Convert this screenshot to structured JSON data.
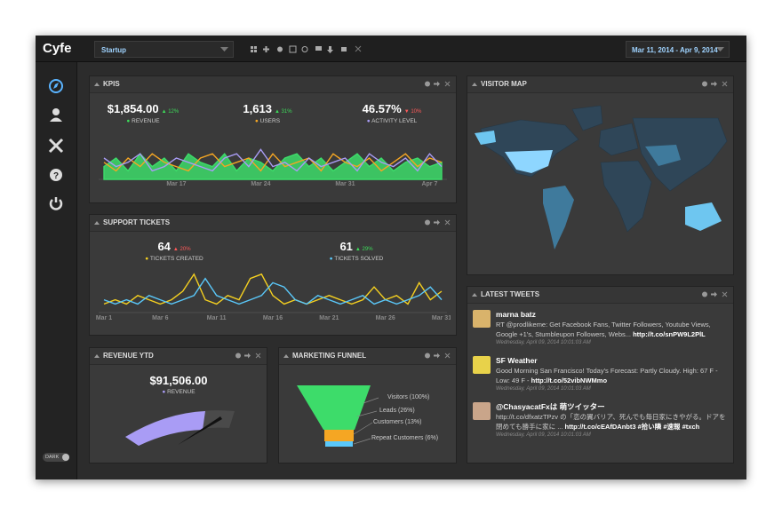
{
  "header": {
    "logo": "Cyfe",
    "dashboard": "Startup",
    "date_range": "Mar 11, 2014 - Apr 9, 2014"
  },
  "sidebar": {
    "toggle": "DARK"
  },
  "kpis": {
    "title": "KPIS",
    "metrics": [
      {
        "value": "$1,854.00",
        "change": "▲ 12%",
        "change_color": "#3ddc5a",
        "label": "REVENUE",
        "color": "#3ddc5a"
      },
      {
        "value": "1,613",
        "change": "▲ 31%",
        "change_color": "#3ddc5a",
        "label": "USERS",
        "color": "#f5a623"
      },
      {
        "value": "46.57%",
        "change": "▼ 10%",
        "change_color": "#ff5a5a",
        "label": "ACTIVITY LEVEL",
        "color": "#a99cf5"
      }
    ],
    "chart": {
      "type": "line",
      "ylim": [
        0,
        10
      ],
      "categories": [
        null,
        null,
        null,
        null,
        null,
        null,
        "Mar 17",
        null,
        null,
        null,
        null,
        null,
        null,
        "Mar 24",
        null,
        null,
        null,
        null,
        null,
        null,
        "Mar 31",
        null,
        null,
        null,
        null,
        null,
        null,
        "Apr 7",
        null
      ],
      "series": [
        {
          "color": "#3ddc6a",
          "area": true,
          "values": [
            3,
            5,
            2,
            6,
            3,
            5,
            2,
            6,
            4,
            3,
            6,
            2,
            5,
            4,
            2,
            5,
            6,
            3,
            5,
            2,
            4,
            6,
            3,
            5,
            2,
            4,
            5,
            3,
            4
          ]
        },
        {
          "color": "#f5a623",
          "values": [
            4,
            2,
            5,
            3,
            6,
            4,
            3,
            2,
            5,
            6,
            3,
            4,
            5,
            2,
            6,
            3,
            4,
            5,
            2,
            6,
            4,
            3,
            5,
            2,
            4,
            6,
            3,
            5,
            4
          ]
        },
        {
          "color": "#a99cf5",
          "values": [
            5,
            3,
            4,
            6,
            2,
            3,
            5,
            4,
            3,
            2,
            5,
            6,
            3,
            7,
            3,
            4,
            2,
            5,
            3,
            4,
            5,
            2,
            6,
            4,
            3,
            5,
            2,
            6,
            3
          ]
        }
      ]
    }
  },
  "support": {
    "title": "SUPPORT TICKETS",
    "metrics": [
      {
        "value": "64",
        "change": "▲ 20%",
        "change_color": "#ff5a5a",
        "label": "TICKETS CREATED",
        "color": "#f5d020"
      },
      {
        "value": "61",
        "change": "▲ 29%",
        "change_color": "#3ddc5a",
        "label": "TICKETS SOLVED",
        "color": "#5ac8fa"
      }
    ],
    "chart": {
      "type": "line",
      "ylim": [
        0,
        10
      ],
      "categories": [
        "Mar 1",
        null,
        null,
        null,
        null,
        "Mar 6",
        null,
        null,
        null,
        null,
        "Mar 11",
        null,
        null,
        null,
        null,
        "Mar 16",
        null,
        null,
        null,
        null,
        "Mar 21",
        null,
        null,
        null,
        null,
        "Mar 26",
        null,
        null,
        null,
        null,
        "Mar 31"
      ],
      "series": [
        {
          "color": "#f5d020",
          "values": [
            2,
            3,
            2,
            4,
            3,
            2,
            3,
            5,
            9,
            3,
            2,
            4,
            3,
            8,
            9,
            4,
            2,
            3,
            2,
            3,
            4,
            3,
            2,
            3,
            6,
            3,
            4,
            2,
            7,
            3,
            5
          ]
        },
        {
          "color": "#5ac8fa",
          "values": [
            3,
            2,
            3,
            2,
            4,
            3,
            2,
            3,
            4,
            8,
            4,
            3,
            2,
            3,
            4,
            7,
            6,
            3,
            2,
            4,
            3,
            2,
            3,
            4,
            2,
            3,
            2,
            3,
            4,
            6,
            3
          ]
        }
      ]
    }
  },
  "revenue_ytd": {
    "title": "REVENUE YTD",
    "value": "$91,506.00",
    "label": "REVENUE",
    "color": "#a99cf5"
  },
  "funnel": {
    "title": "MARKETING FUNNEL",
    "stages": [
      "Visitors (100%)",
      "Leads (26%)",
      "Customers (13%)",
      "Repeat Customers (6%)"
    ]
  },
  "map": {
    "title": "VISITOR MAP"
  },
  "tweets": {
    "title": "LATEST TWEETS",
    "items": [
      {
        "name": "marna batz",
        "text": "RT @prodlikeme: Get Facebook Fans, Twitter Followers, Youtube Views, Google +1's, Stumbleupon Followers, Webs... ",
        "link": "http://t.co/snPW9L2PlL",
        "time": "Wednesday, April 09, 2014 10:01:03 AM"
      },
      {
        "name": "SF Weather",
        "text": "Good Morning San Francisco! Today's Forecast: Partly Cloudy. High: 67 F - Low: 49 F - ",
        "link": "http://t.co/52vibNWMmo",
        "time": "Wednesday, April 09, 2014 10:01:03 AM"
      },
      {
        "name": "@ChasyacatFxは 萌ツイッター",
        "text": "http://t.co/dfxatzTPzv の「恋の翼バリア、死んでも毎日家にきやがる。ドアを閉めても勝手に家に ... ",
        "link": "http://t.co/cEAfDAnbt3 #拾い隣 #速報 #txch",
        "time": "Wednesday, April 09, 2014 10:01:03 AM"
      }
    ]
  }
}
